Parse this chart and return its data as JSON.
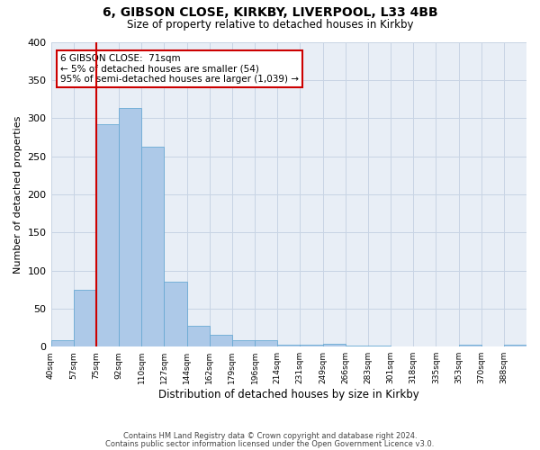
{
  "title": "6, GIBSON CLOSE, KIRKBY, LIVERPOOL, L33 4BB",
  "subtitle": "Size of property relative to detached houses in Kirkby",
  "xlabel": "Distribution of detached houses by size in Kirkby",
  "ylabel": "Number of detached properties",
  "bin_labels": [
    "40sqm",
    "57sqm",
    "75sqm",
    "92sqm",
    "110sqm",
    "127sqm",
    "144sqm",
    "162sqm",
    "179sqm",
    "196sqm",
    "214sqm",
    "231sqm",
    "249sqm",
    "266sqm",
    "283sqm",
    "301sqm",
    "318sqm",
    "335sqm",
    "353sqm",
    "370sqm",
    "388sqm"
  ],
  "bar_heights": [
    8,
    75,
    292,
    313,
    263,
    85,
    27,
    16,
    8,
    8,
    3,
    3,
    4,
    2,
    2,
    0,
    0,
    0,
    3,
    0,
    3
  ],
  "bar_color": "#adc9e8",
  "bar_edge_color": "#6aaad4",
  "grid_color": "#c8d4e4",
  "background_color": "#e8eef6",
  "vline_x": 2,
  "vline_color": "#cc0000",
  "annotation_text": "6 GIBSON CLOSE:  71sqm\n← 5% of detached houses are smaller (54)\n95% of semi-detached houses are larger (1,039) →",
  "annotation_box_color": "#ffffff",
  "annotation_box_edge": "#cc0000",
  "ylim": [
    0,
    400
  ],
  "yticks": [
    0,
    50,
    100,
    150,
    200,
    250,
    300,
    350,
    400
  ],
  "footnote1": "Contains HM Land Registry data © Crown copyright and database right 2024.",
  "footnote2": "Contains public sector information licensed under the Open Government Licence v3.0.",
  "bin_edges": [
    40,
    57,
    75,
    92,
    110,
    127,
    144,
    162,
    179,
    196,
    214,
    231,
    249,
    266,
    283,
    301,
    318,
    335,
    353,
    370,
    388,
    405
  ]
}
